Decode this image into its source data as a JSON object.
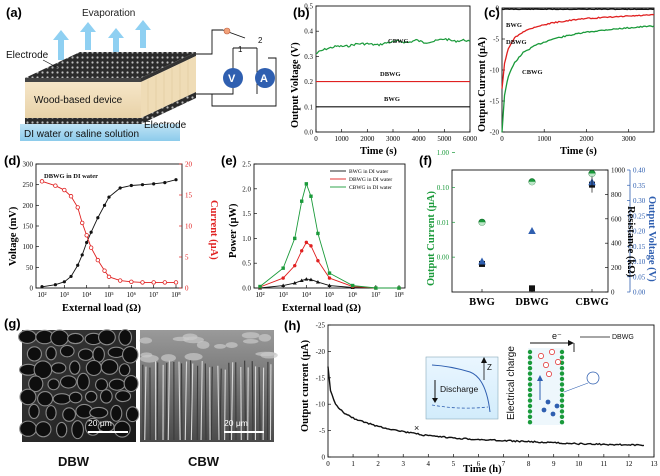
{
  "panels": {
    "a": {
      "label": "(a)",
      "evaporation": "Evaporation",
      "electrode_top": "Electrode",
      "device": "Wood-based device",
      "electrode_bottom": "Electrode",
      "solution": "DI water or  saline solution",
      "switch_1": "1",
      "switch_2": "2",
      "voltmeter": "V",
      "ammeter": "A"
    },
    "b": {
      "label": "(b)"
    },
    "c": {
      "label": "(c)"
    },
    "d": {
      "label": "(d)"
    },
    "e": {
      "label": "(e)"
    },
    "f": {
      "label": "(f)"
    },
    "g": {
      "label": "(g)",
      "scale_left": "20 μm",
      "scale_right": "20 μm",
      "caption_left": "DBW",
      "caption_right": "CBW"
    },
    "h": {
      "label": "(h)",
      "electron": "e⁻",
      "series_label": "DBWG",
      "discharge": "Discharge",
      "axis_z": "Z",
      "electrical_charge": "Electrical charge",
      "marker": "×"
    }
  },
  "colors": {
    "bwg": "#111111",
    "dbwg": "#e02020",
    "cbwg": "#1a9a3a",
    "blue": "#2f5fb0"
  },
  "chart_data": [
    {
      "id": "b",
      "type": "line",
      "xlabel": "Time (s)",
      "ylabel": "Output Voltage (V)",
      "xlim": [
        0,
        6000
      ],
      "ylim": [
        0.0,
        0.5
      ],
      "xticks": [
        "0",
        "1000",
        "2000",
        "3000",
        "4000",
        "5000",
        "6000"
      ],
      "yticks": [
        "0.0",
        "0.1",
        "0.2",
        "0.3",
        "0.4",
        "0.5"
      ],
      "series": [
        {
          "name": "CBWG",
          "x": [
            0,
            150,
            400,
            800,
            1200,
            1600,
            2000,
            2400,
            2800,
            3200,
            3600,
            3900,
            4200,
            4600,
            5000,
            5400,
            5800,
            6000
          ],
          "y": [
            0.31,
            0.32,
            0.33,
            0.34,
            0.34,
            0.35,
            0.35,
            0.345,
            0.355,
            0.36,
            0.355,
            0.365,
            0.355,
            0.36,
            0.37,
            0.36,
            0.365,
            0.36
          ]
        },
        {
          "name": "DBWG",
          "x": [
            0,
            6000
          ],
          "y": [
            0.2,
            0.2
          ]
        },
        {
          "name": "BWG",
          "x": [
            0,
            6000
          ],
          "y": [
            0.1,
            0.1
          ]
        }
      ]
    },
    {
      "id": "c",
      "type": "line",
      "xlabel": "Time (s)",
      "ylabel": "Output Current (μA)",
      "xlim": [
        0,
        3600
      ],
      "ylim": [
        -20,
        0
      ],
      "xticks": [
        "0",
        "1000",
        "2000",
        "3000"
      ],
      "yticks": [
        "0",
        "-5",
        "-10",
        "-15",
        "-20"
      ],
      "series": [
        {
          "name": "BWG",
          "x": [
            0,
            600,
            1200,
            1800,
            2400,
            3000,
            3600
          ],
          "y": [
            -0.2,
            -0.2,
            -0.2,
            -0.2,
            -0.2,
            -0.2,
            -0.2
          ]
        },
        {
          "name": "DBWG",
          "x": [
            0,
            60,
            150,
            300,
            500,
            800,
            1200,
            1600,
            2000,
            2500,
            3000,
            3600
          ],
          "y": [
            -13,
            -9,
            -6.5,
            -4.8,
            -3.8,
            -3.0,
            -2.4,
            -2.0,
            -1.7,
            -1.5,
            -1.3,
            -1.1
          ]
        },
        {
          "name": "CBWG",
          "x": [
            0,
            60,
            150,
            300,
            500,
            800,
            1200,
            1600,
            2000,
            2500,
            3000,
            3600
          ],
          "y": [
            -20,
            -14,
            -11,
            -8.8,
            -7.2,
            -6.0,
            -5.0,
            -4.4,
            -3.9,
            -3.5,
            -3.2,
            -2.9
          ]
        }
      ]
    },
    {
      "id": "d",
      "type": "line",
      "title": "DBWG in DI water",
      "xlabel": "External load (Ω)",
      "ylabel": "Voltage (mV)",
      "ylabel_right": "Current (μA)",
      "xscale": "log",
      "xlim_exp": [
        2,
        8
      ],
      "xticks": [
        "10²",
        "10³",
        "10⁴",
        "10⁵",
        "10⁶",
        "10⁷",
        "10⁸"
      ],
      "ylim": [
        0,
        300
      ],
      "yticks": [
        "0",
        "50",
        "100",
        "150",
        "200",
        "250",
        "300"
      ],
      "ylim_right": [
        0,
        20
      ],
      "yticks_right": [
        "0",
        "5",
        "10",
        "15",
        "20"
      ],
      "series": [
        {
          "name": "Voltage",
          "axis": "left",
          "x_exp": [
            2,
            2.6,
            3,
            3.3,
            3.6,
            3.8,
            4,
            4.2,
            4.5,
            4.8,
            5,
            5.5,
            6,
            6.5,
            7,
            7.5,
            8
          ],
          "y": [
            3,
            8,
            15,
            28,
            55,
            80,
            110,
            135,
            170,
            200,
            220,
            242,
            248,
            250,
            252,
            255,
            262
          ]
        },
        {
          "name": "Current",
          "axis": "right",
          "x_exp": [
            2,
            2.6,
            3,
            3.3,
            3.6,
            3.8,
            4,
            4.2,
            4.5,
            4.8,
            5,
            5.5,
            6,
            6.5,
            7,
            7.5,
            8
          ],
          "y": [
            17.2,
            16.5,
            15.8,
            14.8,
            13.0,
            10.5,
            8.5,
            6.5,
            4.5,
            2.8,
            1.8,
            1.2,
            1.0,
            0.9,
            0.9,
            0.9,
            0.9
          ]
        }
      ]
    },
    {
      "id": "e",
      "type": "line",
      "xlabel": "External load (Ω)",
      "ylabel": "Power (μW)",
      "xscale": "log",
      "xlim_exp": [
        2,
        8
      ],
      "xticks": [
        "10²",
        "10³",
        "10⁴",
        "10⁵",
        "10⁶",
        "10⁷",
        "10⁸"
      ],
      "ylim": [
        0.0,
        2.5
      ],
      "yticks": [
        "0.0",
        "0.5",
        "1.0",
        "1.5",
        "2.0",
        "2.5"
      ],
      "series": [
        {
          "name": "BWG in DI water",
          "x_exp": [
            2,
            3,
            3.5,
            3.8,
            4,
            4.2,
            4.5,
            5,
            6,
            7,
            8
          ],
          "y": [
            0.0,
            0.05,
            0.1,
            0.15,
            0.18,
            0.17,
            0.12,
            0.05,
            0.01,
            0.0,
            0.0
          ]
        },
        {
          "name": "DBWG in DI water",
          "x_exp": [
            2,
            3,
            3.5,
            3.8,
            4,
            4.2,
            4.5,
            5,
            6,
            7,
            8
          ],
          "y": [
            0.02,
            0.2,
            0.45,
            0.75,
            0.92,
            0.85,
            0.55,
            0.2,
            0.03,
            0.0,
            0.0
          ]
        },
        {
          "name": "CBWG in DI water",
          "x_exp": [
            2,
            3,
            3.5,
            3.8,
            4,
            4.2,
            4.5,
            5,
            6,
            7,
            8
          ],
          "y": [
            0.03,
            0.4,
            1.0,
            1.75,
            2.1,
            1.85,
            1.1,
            0.3,
            0.05,
            0.0,
            0.0
          ]
        }
      ]
    },
    {
      "id": "f",
      "type": "scatter",
      "categories": [
        "BWG",
        "DBWG",
        "CBWG"
      ],
      "ylabel": "Output Current (μA)",
      "ylabel_right": "Resistance (kΩ)",
      "ylabel_right2": "Output Voltage (V)",
      "yscale": "log",
      "ylim_exp": [
        -3,
        0.5
      ],
      "yticks": [
        "0.00",
        "0.01",
        "0.10",
        "1.00"
      ],
      "ylim_right": [
        0,
        1000
      ],
      "yticks_right": [
        "0",
        "200",
        "400",
        "600",
        "800",
        "1000"
      ],
      "ylim_right2": [
        0.0,
        0.4
      ],
      "yticks_right2": [
        "0.00",
        "0.05",
        "0.10",
        "0.15",
        "0.20",
        "0.25",
        "0.30",
        "0.35",
        "0.40"
      ],
      "series": [
        {
          "name": "Output Current",
          "axis": "left",
          "values": [
            0.1,
            1.45,
            2.5
          ]
        },
        {
          "name": "Resistance",
          "axis": "right",
          "values": [
            230,
            30,
            880
          ]
        },
        {
          "name": "Output Voltage",
          "axis": "right2",
          "values": [
            0.1,
            0.2,
            0.36
          ]
        }
      ]
    },
    {
      "id": "h",
      "type": "line",
      "xlabel": "Time (h)",
      "ylabel": "Output current (μA)",
      "xlim": [
        0,
        13
      ],
      "ylim": [
        0,
        -25
      ],
      "xticks": [
        "0",
        "1",
        "2",
        "3",
        "4",
        "5",
        "6",
        "7",
        "8",
        "9",
        "10",
        "11",
        "12",
        "13"
      ],
      "yticks": [
        "0",
        "-5",
        "-10",
        "-15",
        "-20",
        "-25"
      ],
      "series": [
        {
          "name": "DBWG",
          "x": [
            0,
            0.1,
            0.3,
            0.6,
            1,
            1.5,
            2,
            3,
            4,
            5,
            6,
            7,
            8,
            9,
            10,
            11,
            12,
            12.6
          ],
          "y": [
            -17,
            -12.5,
            -10,
            -8.5,
            -7.4,
            -6.5,
            -5.8,
            -4.8,
            -4.0,
            -3.6,
            -3.3,
            -3.1,
            -2.9,
            -2.7,
            -2.5,
            -2.4,
            -2.3,
            -2.2
          ]
        }
      ]
    }
  ]
}
